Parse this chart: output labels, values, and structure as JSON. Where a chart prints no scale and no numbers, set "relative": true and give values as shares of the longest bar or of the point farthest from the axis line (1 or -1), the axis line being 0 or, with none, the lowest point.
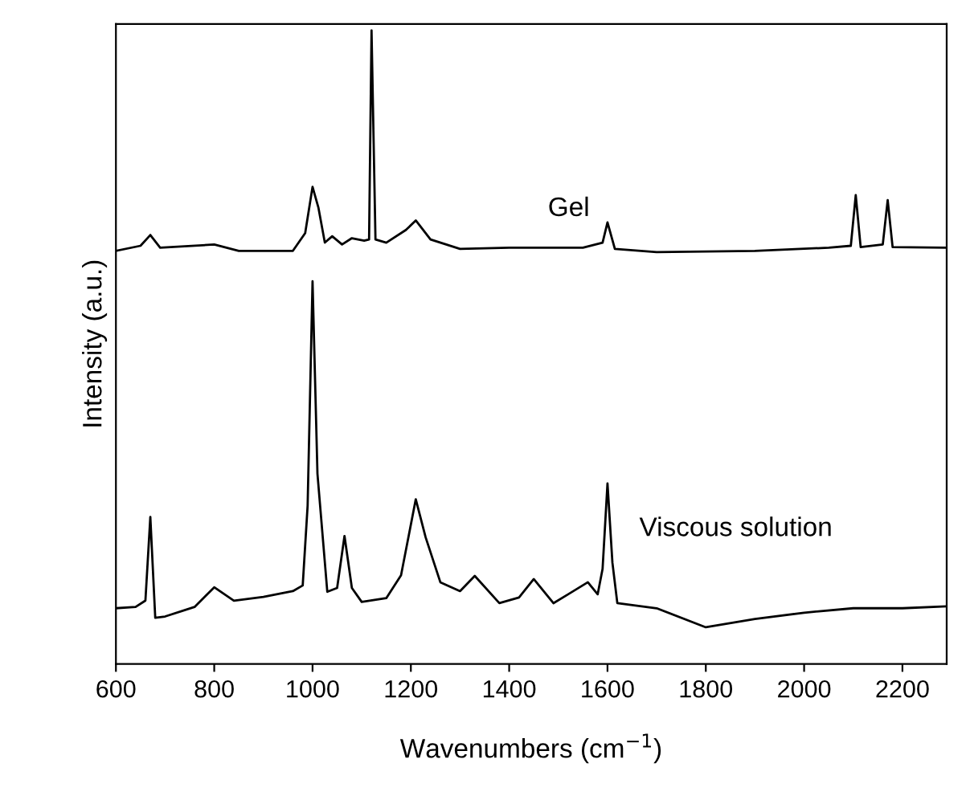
{
  "chart_data": {
    "type": "line",
    "relative": true,
    "xlabel": "Wavenumbers (cm$^{−1}$)",
    "ylabel": "Intensity (a.u.)",
    "xlim": [
      600,
      2290
    ],
    "xticks": [
      600,
      800,
      1000,
      1200,
      1400,
      1600,
      1800,
      2000,
      2200
    ],
    "legend": false,
    "grid": false,
    "marker": "none",
    "line_style": "solid",
    "series": [
      {
        "name": "Gel",
        "color": "#000000",
        "x": [
          600,
          650,
          670,
          690,
          800,
          850,
          960,
          985,
          1000,
          1012,
          1025,
          1040,
          1060,
          1080,
          1105,
          1115,
          1120,
          1128,
          1150,
          1190,
          1210,
          1240,
          1300,
          1400,
          1550,
          1590,
          1600,
          1615,
          1700,
          1900,
          2050,
          2095,
          2105,
          2115,
          2160,
          2170,
          2180,
          2290
        ],
        "values": [
          0.652,
          0.66,
          0.677,
          0.657,
          0.662,
          0.652,
          0.652,
          0.68,
          0.753,
          0.72,
          0.665,
          0.675,
          0.662,
          0.672,
          0.668,
          0.67,
          1.0,
          0.67,
          0.665,
          0.685,
          0.7,
          0.67,
          0.655,
          0.657,
          0.657,
          0.665,
          0.697,
          0.655,
          0.65,
          0.652,
          0.657,
          0.66,
          0.74,
          0.658,
          0.662,
          0.732,
          0.658,
          0.657
        ]
      },
      {
        "name": "Viscous solution",
        "color": "#000000",
        "x": [
          600,
          640,
          660,
          670,
          680,
          700,
          760,
          800,
          840,
          900,
          960,
          980,
          990,
          1000,
          1010,
          1030,
          1050,
          1065,
          1080,
          1100,
          1150,
          1180,
          1210,
          1230,
          1260,
          1300,
          1330,
          1380,
          1420,
          1450,
          1490,
          1520,
          1560,
          1580,
          1590,
          1600,
          1610,
          1620,
          1700,
          1800,
          1900,
          2000,
          2100,
          2200,
          2290
        ],
        "values": [
          0.088,
          0.09,
          0.1,
          0.232,
          0.073,
          0.075,
          0.09,
          0.121,
          0.1,
          0.106,
          0.115,
          0.124,
          0.25,
          0.604,
          0.3,
          0.114,
          0.12,
          0.202,
          0.12,
          0.098,
          0.104,
          0.14,
          0.26,
          0.2,
          0.129,
          0.115,
          0.139,
          0.096,
          0.105,
          0.134,
          0.096,
          0.11,
          0.129,
          0.11,
          0.15,
          0.285,
          0.16,
          0.096,
          0.088,
          0.058,
          0.071,
          0.081,
          0.088,
          0.088,
          0.091
        ]
      }
    ]
  }
}
